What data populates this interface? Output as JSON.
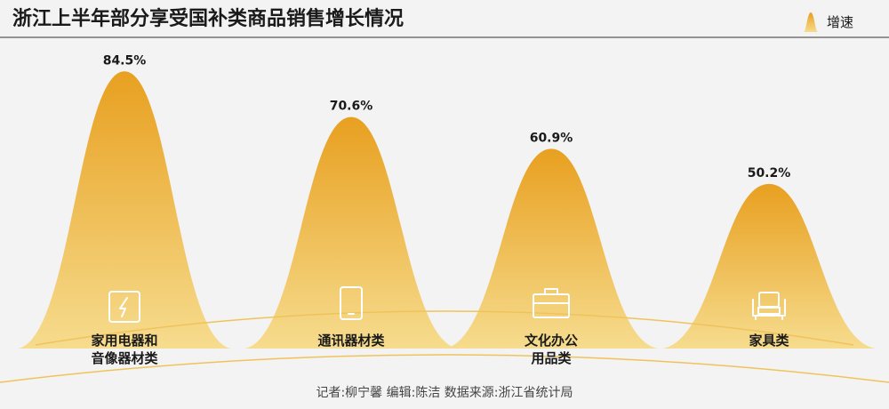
{
  "chart_data": {
    "type": "area",
    "title": "浙江上半年部分享受国补类商品销售增长情况",
    "legend": {
      "label": "增速",
      "placement": "top-right"
    },
    "categories": [
      {
        "label_lines": [
          "家用电器和",
          "音像器材类"
        ],
        "icon": "lightning-icon"
      },
      {
        "label_lines": [
          "通讯器材类"
        ],
        "icon": "tablet-icon"
      },
      {
        "label_lines": [
          "文化办公",
          "用品类"
        ],
        "icon": "briefcase-icon"
      },
      {
        "label_lines": [
          "家具类"
        ],
        "icon": "armchair-icon"
      }
    ],
    "series": [
      {
        "values": [
          84.5,
          70.6,
          60.9,
          50.2
        ]
      }
    ],
    "data_labels": [
      "84.5%",
      "70.6%",
      "60.9%",
      "50.2%"
    ],
    "ylim": [
      0,
      90
    ],
    "grid": false,
    "colors": {
      "peak_top": "#e8a020",
      "peak_bottom": "#f6dc8e",
      "baseline": "#f0c35a",
      "text": "#1a1a1a",
      "footer": "#444444"
    }
  },
  "footer": "记者:柳宁馨   编辑:陈洁   数据来源:浙江省统计局"
}
